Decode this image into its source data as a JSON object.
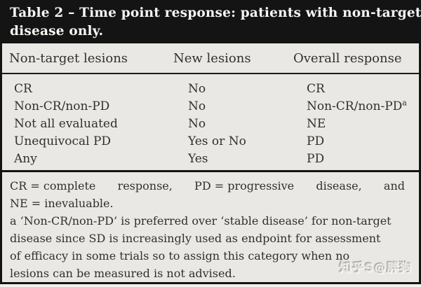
{
  "title": {
    "lines": [
      "Table 2 – Time point response: patients with non-target",
      "disease only."
    ]
  },
  "table": {
    "columns": [
      "Non-target lesions",
      "New lesions",
      "Overall response"
    ],
    "rows": [
      [
        {
          "t": "CR"
        },
        {
          "t": "No"
        },
        {
          "t": "CR"
        }
      ],
      [
        {
          "t": "Non-CR/non-PD"
        },
        {
          "t": "No"
        },
        {
          "t": "Non-CR/non-PD",
          "sup": "a"
        }
      ],
      [
        {
          "t": "Not all evaluated"
        },
        {
          "t": "No"
        },
        {
          "t": "NE"
        }
      ],
      [
        {
          "t": "Unequivocal PD"
        },
        {
          "t": "Yes or No"
        },
        {
          "t": "PD"
        }
      ],
      [
        {
          "t": "Any"
        },
        {
          "t": "Yes"
        },
        {
          "t": "PD"
        }
      ]
    ]
  },
  "footnotes": {
    "abbrev": {
      "justified_segments": [
        "CR = complete",
        "response,",
        "PD = progressive",
        "disease,",
        "and"
      ],
      "last_line": "NE = inevaluable."
    },
    "note_a": {
      "lines": [
        "a ‘Non-CR/non-PD’ is preferred over ‘stable disease’ for non-target",
        "disease since SD is increasingly used as endpoint for assessment",
        "of efficacy in some trials so to assign this category when no",
        "lesions can be measured is not advised."
      ]
    }
  },
  "watermark": {
    "text": "知乎S@胖狗"
  },
  "colors": {
    "bar": "#141414",
    "background": "#e9e8e4",
    "text": "#32302d",
    "title_text": "#f7f6f3",
    "rule": "#1b1a18"
  }
}
